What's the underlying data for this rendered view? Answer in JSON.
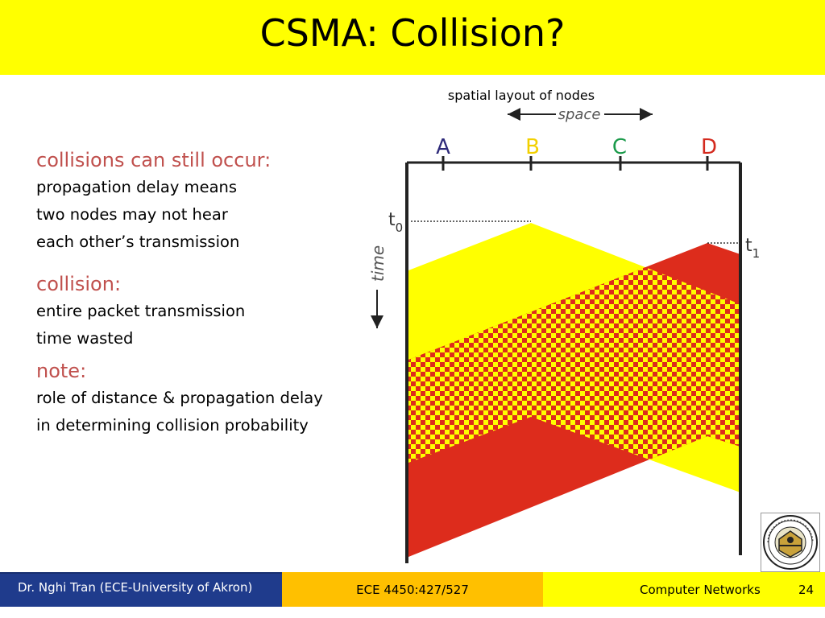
{
  "slide": {
    "title": "CSMA: Collision?"
  },
  "content": {
    "blocks": [
      {
        "heading": "collisions can still occur:",
        "text": "propagation delay means\ntwo nodes may not hear\neach other’s transmission"
      },
      {
        "heading": "collision:",
        "text": "entire packet transmission\ntime wasted"
      },
      {
        "heading": "note:",
        "text": "role of distance & propagation delay\nin determining collision probability"
      }
    ]
  },
  "diagram": {
    "caption": "spatial layout of nodes",
    "space_label": "space",
    "time_label": "time",
    "nodes": [
      {
        "label": "A",
        "color": "#2e2a7a"
      },
      {
        "label": "B",
        "color": "#f2d000"
      },
      {
        "label": "C",
        "color": "#1a9a4a"
      },
      {
        "label": "D",
        "color": "#d42a1e"
      }
    ],
    "t0": {
      "base": "t",
      "sub": "0"
    },
    "t1": {
      "base": "t",
      "sub": "1"
    },
    "colors": {
      "yellow": "#ffff00",
      "red": "#dd2c1c",
      "axis": "#222222"
    }
  },
  "footer": {
    "author": "Dr. Nghi Tran (ECE-University of Akron)",
    "course_code": "ECE 4450:427/527",
    "course_name": "Computer Networks",
    "page": "24"
  },
  "logo": {
    "alt": "The University of Akron seal",
    "text": "THE UNIVERSITY OF AKRON 1870"
  }
}
